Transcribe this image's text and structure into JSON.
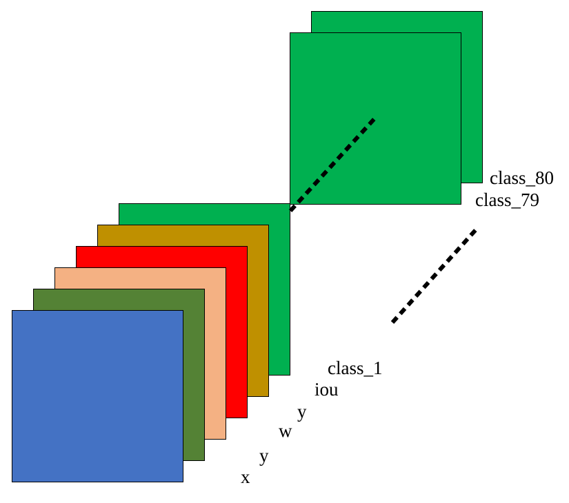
{
  "colors": {
    "blue": "#4472C4",
    "dark_green": "#548235",
    "peach": "#F4B183",
    "red": "#FF0000",
    "gold": "#BF9000",
    "green": "#00B050",
    "dots": "#000000"
  },
  "labels": {
    "x": "x",
    "y1": "y",
    "w": "w",
    "y2": "y",
    "iou": "iou",
    "class_1": "class_1",
    "class_79": "class_79",
    "class_80": "class_80"
  }
}
